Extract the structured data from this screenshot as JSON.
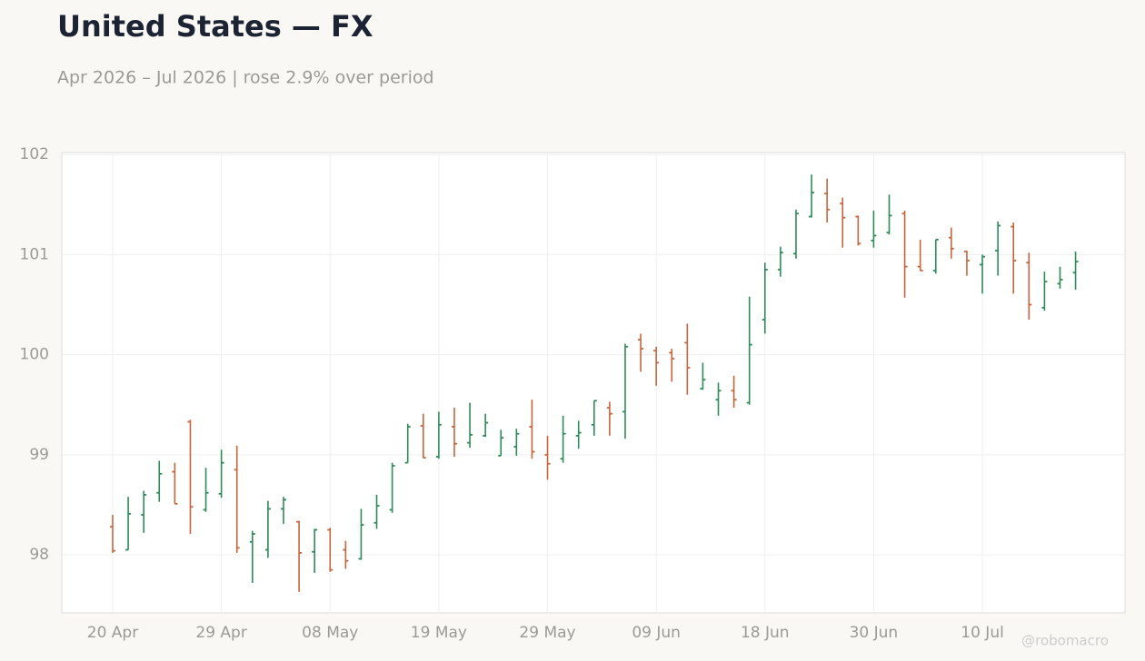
{
  "chart_data": {
    "type": "ohlc",
    "title": "United States — FX",
    "subtitle": "Apr 2026 – Jul 2026 | rose 2.9% over period",
    "watermark": "@robomacro",
    "categories": [
      "20 Apr",
      null,
      null,
      null,
      null,
      null,
      null,
      "29 Apr",
      null,
      null,
      null,
      null,
      null,
      null,
      "08 May",
      null,
      null,
      null,
      null,
      null,
      null,
      "19 May",
      null,
      null,
      null,
      null,
      null,
      null,
      "29 May",
      null,
      null,
      null,
      null,
      null,
      null,
      "09 Jun",
      null,
      null,
      null,
      null,
      null,
      null,
      "18 Jun",
      null,
      null,
      null,
      null,
      null,
      null,
      "30 Jun",
      null,
      null,
      null,
      null,
      null,
      null,
      "10 Jul",
      null,
      null,
      null,
      null,
      null,
      null
    ],
    "open": [
      98.28,
      98.05,
      98.4,
      98.62,
      98.83,
      99.33,
      98.45,
      98.61,
      98.85,
      98.13,
      98.05,
      98.46,
      98.33,
      98.03,
      98.25,
      98.05,
      97.96,
      98.32,
      98.45,
      98.92,
      99.29,
      98.98,
      99.28,
      99.12,
      99.19,
      98.99,
      99.08,
      99.28,
      99.0,
      98.96,
      99.19,
      99.3,
      99.47,
      99.43,
      100.15,
      100.04,
      100.02,
      100.12,
      99.66,
      99.55,
      99.64,
      99.52,
      100.35,
      100.85,
      101.01,
      101.38,
      101.61,
      101.51,
      101.38,
      101.14,
      101.22,
      101.41,
      100.88,
      100.84,
      101.17,
      101.03,
      100.9,
      101.04,
      101.28,
      100.92,
      100.47,
      100.71,
      100.82
    ],
    "high": [
      98.4,
      98.58,
      98.64,
      98.94,
      98.92,
      99.35,
      98.87,
      99.05,
      99.09,
      98.24,
      98.54,
      98.58,
      98.34,
      98.26,
      98.27,
      98.14,
      98.46,
      98.6,
      98.92,
      99.31,
      99.41,
      99.43,
      99.47,
      99.52,
      99.41,
      99.25,
      99.26,
      99.55,
      99.19,
      99.39,
      99.34,
      99.54,
      99.53,
      100.11,
      100.21,
      100.08,
      100.06,
      100.31,
      99.92,
      99.72,
      99.79,
      100.58,
      100.92,
      101.08,
      101.45,
      101.8,
      101.76,
      101.57,
      101.39,
      101.44,
      101.6,
      101.44,
      101.15,
      101.15,
      101.27,
      101.04,
      101.0,
      101.33,
      101.32,
      101.02,
      100.83,
      100.88,
      101.03
    ],
    "low": [
      98.02,
      98.05,
      98.22,
      98.53,
      98.51,
      98.21,
      98.43,
      98.57,
      98.02,
      97.72,
      97.97,
      98.31,
      97.63,
      97.82,
      97.83,
      97.86,
      97.95,
      98.26,
      98.42,
      98.92,
      98.97,
      98.96,
      98.98,
      99.07,
      99.18,
      98.99,
      98.99,
      98.96,
      98.75,
      98.92,
      99.06,
      99.19,
      99.19,
      99.16,
      99.83,
      99.69,
      99.73,
      99.6,
      99.65,
      99.39,
      99.47,
      99.5,
      100.21,
      100.78,
      100.96,
      101.37,
      101.32,
      101.07,
      101.09,
      101.07,
      101.2,
      100.57,
      100.84,
      100.81,
      100.96,
      100.79,
      100.61,
      100.79,
      100.61,
      100.35,
      100.44,
      100.66,
      100.65
    ],
    "close": [
      98.04,
      98.41,
      98.6,
      98.81,
      98.51,
      98.48,
      98.62,
      98.92,
      98.07,
      98.21,
      98.46,
      98.55,
      98.02,
      98.25,
      97.85,
      97.94,
      98.3,
      98.49,
      98.89,
      99.28,
      98.97,
      99.3,
      99.11,
      99.2,
      99.32,
      99.17,
      99.21,
      99.03,
      98.91,
      99.21,
      99.22,
      99.54,
      99.41,
      100.08,
      100.06,
      99.92,
      99.96,
      99.87,
      99.75,
      99.64,
      99.55,
      100.1,
      100.85,
      101.02,
      101.41,
      101.62,
      101.45,
      101.37,
      101.11,
      101.19,
      101.39,
      100.88,
      100.84,
      101.15,
      101.06,
      100.94,
      100.98,
      101.29,
      100.94,
      100.5,
      100.73,
      100.75,
      100.93
    ],
    "up_color": "#2e8b57",
    "down_color": "#c8643c",
    "ylim": [
      97.42,
      102.02
    ],
    "yticks": [
      98,
      99,
      100,
      101,
      102
    ],
    "grid": true
  }
}
